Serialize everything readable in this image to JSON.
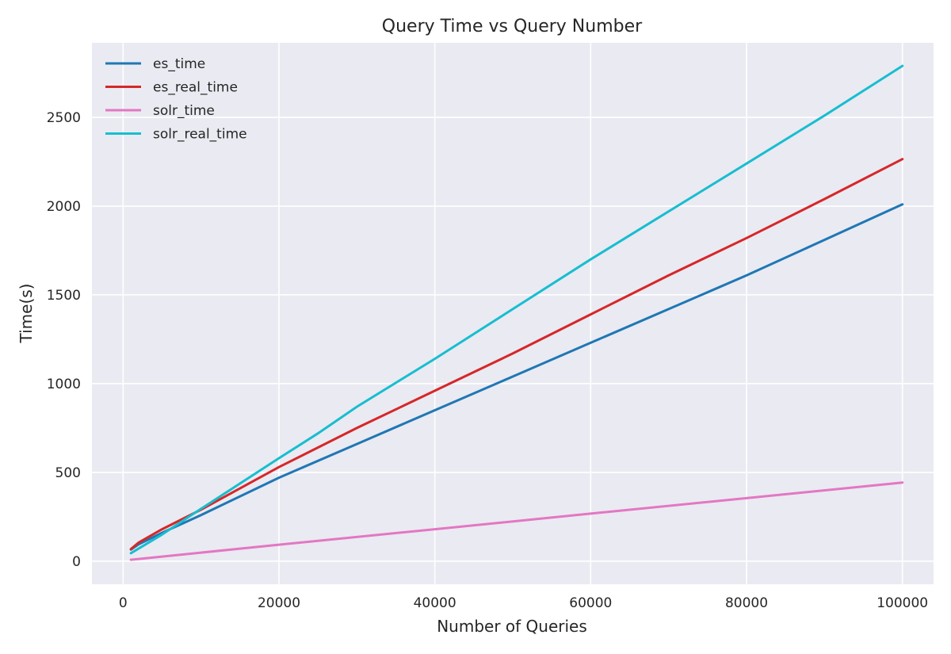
{
  "chart_data": {
    "type": "line",
    "title": "Query Time vs Query Number",
    "xlabel": "Number of Queries",
    "ylabel": "Time(s)",
    "xlim": [
      -4000,
      104000
    ],
    "ylim": [
      -130,
      2920
    ],
    "xticks": [
      0,
      20000,
      40000,
      60000,
      80000,
      100000
    ],
    "yticks": [
      0,
      500,
      1000,
      1500,
      2000,
      2500
    ],
    "grid": true,
    "legend_position": "top-left",
    "series": [
      {
        "name": "es_time",
        "color": "#1f77b4",
        "x": [
          1000,
          2000,
          5000,
          10000,
          20000,
          30000,
          40000,
          50000,
          60000,
          70000,
          80000,
          90000,
          100000
        ],
        "y": [
          65,
          95,
          160,
          260,
          470,
          660,
          850,
          1040,
          1230,
          1420,
          1610,
          1810,
          2010
        ]
      },
      {
        "name": "es_real_time",
        "color": "#d62728",
        "x": [
          1000,
          2000,
          5000,
          10000,
          20000,
          30000,
          40000,
          50000,
          60000,
          70000,
          80000,
          90000,
          100000
        ],
        "y": [
          68,
          105,
          180,
          290,
          530,
          750,
          960,
          1170,
          1390,
          1610,
          1820,
          2040,
          2265
        ]
      },
      {
        "name": "solr_time",
        "color": "#e377c2",
        "x": [
          1000,
          20000,
          40000,
          60000,
          80000,
          100000
        ],
        "y": [
          8,
          93,
          180,
          268,
          355,
          443
        ]
      },
      {
        "name": "solr_real_time",
        "color": "#17becf",
        "x": [
          1000,
          5000,
          10000,
          20000,
          25000,
          30000,
          40000,
          50000,
          60000,
          70000,
          80000,
          90000,
          100000
        ],
        "y": [
          45,
          150,
          295,
          580,
          720,
          870,
          1140,
          1420,
          1700,
          1970,
          2240,
          2510,
          2790
        ]
      }
    ]
  }
}
